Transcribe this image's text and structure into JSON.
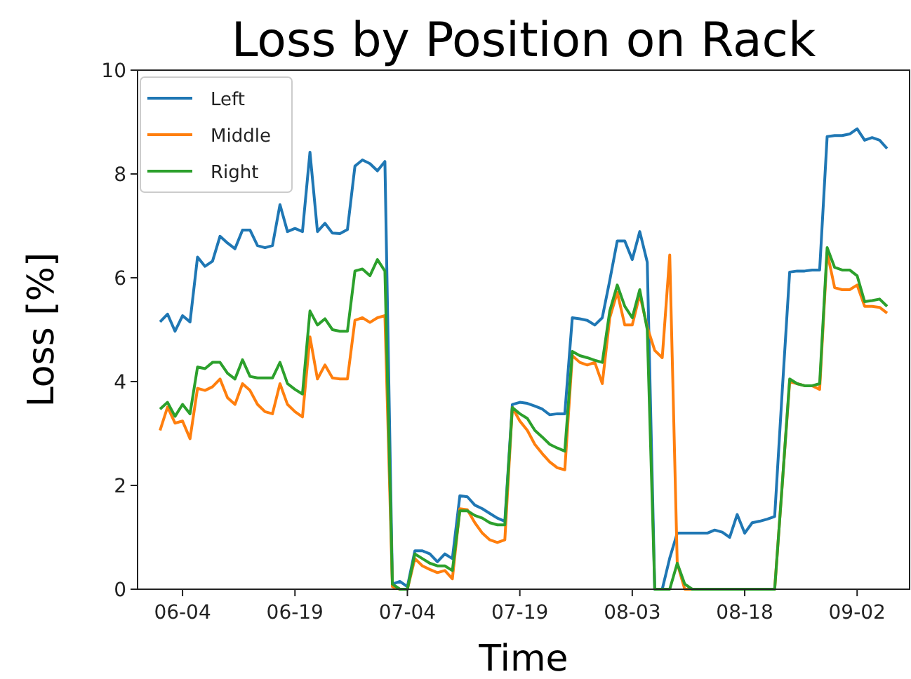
{
  "chart_data": {
    "type": "line",
    "title": "Loss by Position on Rack",
    "xlabel": "Time",
    "ylabel": "Loss [%]",
    "x": [
      "--06-01",
      "--06-02",
      "--06-03",
      "--06-04",
      "--06-05",
      "--06-06",
      "--06-07",
      "--06-08",
      "--06-09",
      "--06-10",
      "--06-11",
      "--06-12",
      "--06-13",
      "--06-14",
      "--06-15",
      "--06-16",
      "--06-17",
      "--06-18",
      "--06-19",
      "--06-20",
      "--06-21",
      "--06-22",
      "--06-23",
      "--06-24",
      "--06-25",
      "--06-26",
      "--06-27",
      "--06-28",
      "--06-29",
      "--06-30",
      "--07-01",
      "--07-02",
      "--07-03",
      "--07-04",
      "--07-05",
      "--07-06",
      "--07-07",
      "--07-08",
      "--07-09",
      "--07-10",
      "--07-11",
      "--07-12",
      "--07-13",
      "--07-14",
      "--07-15",
      "--07-16",
      "--07-17",
      "--07-18",
      "--07-19",
      "--07-20",
      "--07-21",
      "--07-22",
      "--07-23",
      "--07-24",
      "--07-25",
      "--07-26",
      "--07-27",
      "--07-28",
      "--07-29",
      "--07-30",
      "--07-31",
      "--08-01",
      "--08-02",
      "--08-03",
      "--08-04",
      "--08-05",
      "--08-06",
      "--08-07",
      "--08-08",
      "--08-09",
      "--08-10",
      "--08-11",
      "--08-12",
      "--08-13",
      "--08-14",
      "--08-15",
      "--08-16",
      "--08-17",
      "--08-18",
      "--08-19",
      "--08-20",
      "--08-21",
      "--08-22",
      "--08-23",
      "--08-24",
      "--08-25",
      "--08-26",
      "--08-27",
      "--08-28",
      "--08-29",
      "--08-30",
      "--08-31",
      "--09-01",
      "--09-02",
      "--09-03",
      "--09-04",
      "--09-05",
      "--09-06"
    ],
    "series": [
      {
        "name": "Left",
        "color": "#1f77b4",
        "values": [
          5.15,
          5.3,
          4.97,
          5.27,
          5.15,
          6.4,
          6.22,
          6.32,
          6.8,
          6.67,
          6.56,
          6.92,
          6.92,
          6.62,
          6.58,
          6.62,
          7.41,
          6.89,
          6.95,
          6.89,
          8.42,
          6.89,
          7.05,
          6.86,
          6.85,
          6.93,
          8.15,
          8.27,
          8.2,
          8.06,
          8.24,
          0.1,
          0.15,
          0.05,
          0.74,
          0.74,
          0.68,
          0.53,
          0.68,
          0.59,
          1.8,
          1.78,
          1.62,
          1.55,
          1.46,
          1.37,
          1.31,
          3.56,
          3.6,
          3.58,
          3.53,
          3.47,
          3.36,
          3.38,
          3.38,
          5.23,
          5.21,
          5.18,
          5.09,
          5.23,
          5.95,
          6.71,
          6.71,
          6.35,
          6.89,
          6.3,
          0,
          0,
          0.6,
          1.08,
          1.08,
          1.08,
          1.08,
          1.08,
          1.14,
          1.1,
          1.0,
          1.44,
          1.08,
          1.28,
          1.31,
          1.35,
          1.4,
          3.8,
          6.11,
          6.13,
          6.13,
          6.15,
          6.15,
          8.72,
          8.74,
          8.74,
          8.77,
          8.87,
          8.65,
          8.7,
          8.65,
          8.49
        ]
      },
      {
        "name": "Middle",
        "color": "#ff7f0e",
        "values": [
          3.06,
          3.51,
          3.2,
          3.24,
          2.9,
          3.87,
          3.83,
          3.9,
          4.05,
          3.69,
          3.56,
          3.96,
          3.83,
          3.56,
          3.42,
          3.38,
          3.96,
          3.56,
          3.42,
          3.32,
          4.86,
          4.05,
          4.32,
          4.07,
          4.05,
          4.05,
          5.18,
          5.23,
          5.14,
          5.23,
          5.27,
          0.05,
          0,
          0,
          0.59,
          0.45,
          0.38,
          0.32,
          0.36,
          0.2,
          1.55,
          1.53,
          1.28,
          1.08,
          0.95,
          0.9,
          0.95,
          3.5,
          3.24,
          3.06,
          2.79,
          2.61,
          2.45,
          2.34,
          2.3,
          4.5,
          4.37,
          4.32,
          4.37,
          3.96,
          5.23,
          5.72,
          5.09,
          5.09,
          5.68,
          5.05,
          4.6,
          4.46,
          6.44,
          0.5,
          0,
          0,
          0,
          0,
          0,
          0,
          0,
          0,
          0,
          0,
          0,
          0,
          0,
          2.0,
          4.0,
          3.96,
          3.92,
          3.92,
          3.85,
          6.49,
          5.81,
          5.77,
          5.77,
          5.86,
          5.45,
          5.45,
          5.43,
          5.32
        ]
      },
      {
        "name": "Right",
        "color": "#2ca02c",
        "values": [
          3.47,
          3.6,
          3.33,
          3.56,
          3.38,
          4.28,
          4.25,
          4.37,
          4.37,
          4.16,
          4.05,
          4.42,
          4.1,
          4.07,
          4.07,
          4.07,
          4.37,
          3.96,
          3.85,
          3.76,
          5.36,
          5.09,
          5.21,
          5.0,
          4.97,
          4.97,
          6.13,
          6.17,
          6.04,
          6.35,
          6.13,
          0.1,
          0,
          0,
          0.68,
          0.59,
          0.5,
          0.45,
          0.45,
          0.36,
          1.51,
          1.51,
          1.42,
          1.37,
          1.28,
          1.24,
          1.24,
          3.5,
          3.38,
          3.29,
          3.06,
          2.93,
          2.79,
          2.72,
          2.66,
          4.58,
          4.5,
          4.46,
          4.41,
          4.37,
          5.36,
          5.86,
          5.45,
          5.23,
          5.77,
          5.0,
          0,
          0,
          0,
          0.5,
          0.1,
          0,
          0,
          0,
          0,
          0,
          0,
          0,
          0,
          0,
          0,
          0,
          0,
          2.0,
          4.05,
          3.96,
          3.92,
          3.92,
          3.96,
          6.58,
          6.2,
          6.15,
          6.15,
          6.04,
          5.54,
          5.56,
          5.59,
          5.45
        ]
      }
    ],
    "xlim": [
      "--05-29",
      "--09-09"
    ],
    "xticks": [
      {
        "value": "--06-04",
        "label": "06-04"
      },
      {
        "value": "--06-19",
        "label": "06-19"
      },
      {
        "value": "--07-04",
        "label": "07-04"
      },
      {
        "value": "--07-19",
        "label": "07-19"
      },
      {
        "value": "--08-03",
        "label": "08-03"
      },
      {
        "value": "--08-18",
        "label": "08-18"
      },
      {
        "value": "--09-02",
        "label": "09-02"
      }
    ],
    "ylim": [
      0,
      10
    ],
    "yticks": [
      0,
      2,
      4,
      6,
      8,
      10
    ],
    "legend": "top left",
    "grid": false,
    "marker": "none",
    "line_style": "solid"
  }
}
